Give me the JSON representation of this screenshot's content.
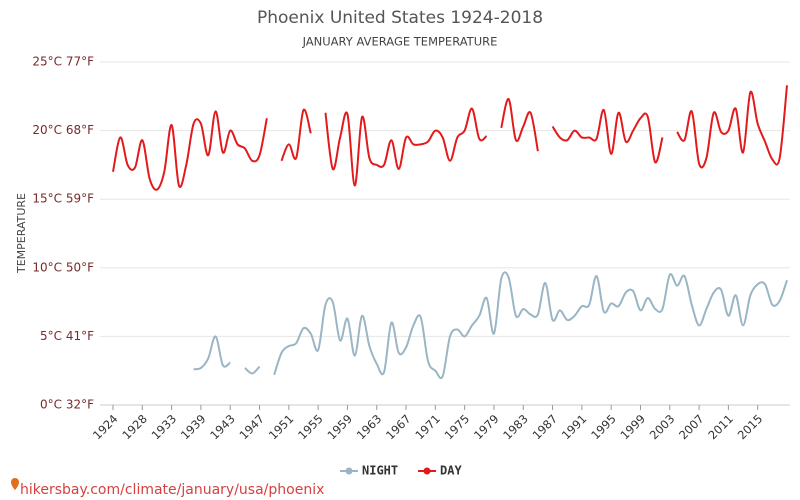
{
  "chart_data": {
    "type": "line",
    "title": "Phoenix United States 1924-2018",
    "subtitle": "JANUARY AVERAGE TEMPERATURE",
    "y_label": "TEMPERATURE",
    "source": "hikersbay.com/climate/january/usa/phoenix",
    "categories": [
      "1924",
      null,
      null,
      null,
      "1928",
      null,
      null,
      null,
      "1933",
      null,
      null,
      null,
      "1939",
      null,
      null,
      null,
      "1943",
      null,
      null,
      null,
      "1947",
      null,
      null,
      null,
      "1951",
      null,
      null,
      null,
      "1955",
      null,
      null,
      null,
      "1959",
      null,
      null,
      null,
      "1963",
      null,
      null,
      null,
      "1967",
      null,
      null,
      null,
      "1971",
      null,
      null,
      null,
      "1975",
      null,
      null,
      null,
      "1979",
      null,
      null,
      null,
      "1983",
      null,
      null,
      null,
      "1987",
      null,
      null,
      null,
      "1991",
      null,
      null,
      null,
      "1995",
      null,
      null,
      null,
      "1999",
      null,
      null,
      null,
      "2003",
      null,
      null,
      null,
      "2007",
      null,
      null,
      null,
      "2011",
      null,
      null,
      null,
      "2015",
      null,
      null,
      null,
      null
    ],
    "ylim": [
      0,
      25
    ],
    "yticks": [
      {
        "value": 0,
        "label": "0°C 32°F"
      },
      {
        "value": 5,
        "label": "5°C 41°F"
      },
      {
        "value": 10,
        "label": "10°C 50°F"
      },
      {
        "value": 15,
        "label": "15°C 59°F"
      },
      {
        "value": 20,
        "label": "20°C 68°F"
      },
      {
        "value": 25,
        "label": "25°C 77°F"
      }
    ],
    "grid": true,
    "legend": "bottom",
    "series": [
      {
        "name": "NIGHT",
        "color": "#9ab5c4",
        "values": [
          null,
          null,
          null,
          null,
          null,
          null,
          null,
          null,
          null,
          null,
          null,
          2.6,
          2.7,
          3.4,
          5.0,
          2.9,
          3.1,
          null,
          2.7,
          2.3,
          2.8,
          null,
          2.2,
          3.8,
          4.3,
          4.5,
          5.6,
          5.2,
          4,
          7.3,
          7.5,
          4.7,
          6.3,
          3.6,
          6.5,
          4.3,
          3,
          2.4,
          6,
          3.8,
          4.2,
          5.8,
          6.4,
          3.2,
          2.5,
          2.1,
          5,
          5.5,
          5,
          5.8,
          6.5,
          7.8,
          5.2,
          9.2,
          9.3,
          6.5,
          7,
          6.6,
          6.6,
          8.9,
          6.2,
          6.9,
          6.2,
          6.5,
          7.2,
          7.3,
          9.4,
          6.8,
          7.4,
          7.2,
          8.2,
          8.3,
          6.9,
          7.8,
          7,
          7,
          9.5,
          8.7,
          9.4,
          7.3,
          5.8,
          7,
          8.2,
          8.4,
          6.5,
          8,
          5.8,
          8,
          8.8,
          8.8,
          7.3,
          7.6,
          9.1
        ]
      },
      {
        "name": "DAY",
        "color": "#e31a1c",
        "values": [
          17,
          19.5,
          17.5,
          17.3,
          19.3,
          16.5,
          15.7,
          17,
          20.4,
          16,
          17.5,
          20.5,
          20.5,
          18.2,
          21.4,
          18.4,
          20,
          19,
          18.7,
          17.8,
          18.2,
          20.9,
          null,
          17.8,
          19,
          18,
          21.5,
          19.8,
          null,
          21.3,
          17.2,
          19.5,
          21.2,
          16,
          21,
          18,
          17.5,
          17.5,
          19.3,
          17.2,
          19.5,
          19,
          19,
          19.2,
          20,
          19.5,
          17.8,
          19.5,
          20,
          21.6,
          19.4,
          19.6,
          null,
          20.2,
          22.3,
          19.3,
          20.3,
          21.3,
          18.5,
          null,
          20.3,
          19.5,
          19.3,
          20,
          19.5,
          19.5,
          19.4,
          21.5,
          18.3,
          21.3,
          19.2,
          20,
          20.9,
          21,
          17.7,
          19.5,
          null,
          19.9,
          19.3,
          21.4,
          17.6,
          18,
          21.3,
          19.9,
          20,
          21.6,
          18.4,
          22.8,
          20.5,
          19.2,
          17.9,
          18,
          23.3
        ]
      }
    ]
  }
}
